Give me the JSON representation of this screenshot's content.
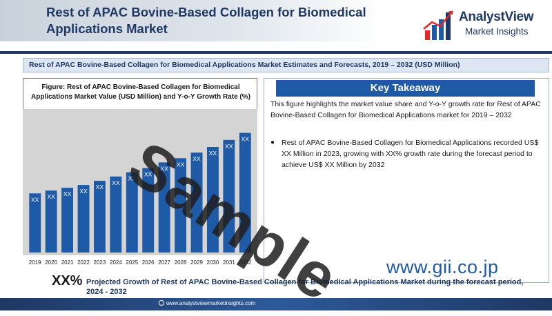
{
  "header": {
    "title": "Rest of APAC Bovine-Based Collagen for Biomedical Applications Market",
    "logo_name": "AnalystView",
    "logo_subtitle": "Market Insights"
  },
  "banner": {
    "text": "Rest of APAC Bovine-Based Collagen for Biomedical Applications Market Estimates and Forecasts, 2019 – 2032 (USD Million)"
  },
  "figure": {
    "title": "Figure: Rest of APAC Bovine-Based Collagen for Biomedical Applications Market Value (USD Million) and Y-o-Y Growth Rate (%)"
  },
  "chart_data": {
    "type": "bar",
    "categories": [
      "2019",
      "2020",
      "2021",
      "2022",
      "2023",
      "2024",
      "2025",
      "2026",
      "2027",
      "2028",
      "2029",
      "2030",
      "2031",
      "2032"
    ],
    "values": [
      0.42,
      0.44,
      0.46,
      0.48,
      0.51,
      0.54,
      0.57,
      0.6,
      0.64,
      0.67,
      0.71,
      0.75,
      0.8,
      0.85
    ],
    "data_labels": [
      "XX",
      "XX",
      "XX",
      "XX",
      "XX",
      "XX",
      "XX",
      "XX",
      "XX",
      "XX",
      "XX",
      "XX",
      "XX",
      "XX"
    ],
    "title": "",
    "xlabel": "",
    "ylabel": "",
    "ylim": [
      0,
      1
    ],
    "grid": false,
    "colors": {
      "bar": "#1f5aa6",
      "background": "#d4d4d4"
    }
  },
  "key_takeaway": {
    "heading": "Key Takeaway",
    "intro": "This figure highlights the market value share and Y-o-Y growth rate for Rest of APAC Bovine-Based Collagen for Biomedical Applications market for 2019 – 2032",
    "bullet": "Rest of APAC Bovine-Based Collagen for Biomedical Applications recorded US$ XX Million in 2023, growing with XX% growth rate during the forecast period to achieve US$ XX Million by 2032"
  },
  "growth": {
    "value": "XX%",
    "text": "Projected Growth of Rest of APAC Bovine-Based Collagen for Biomedical Applications Market during the forecast period, 2024 - 2032"
  },
  "footer": {
    "url": "www.analystviewmarketinsights.com"
  },
  "watermark": {
    "text": "Sample",
    "site": "www.gii.co.jp"
  },
  "colors": {
    "navy": "#1f3864",
    "accent_blue": "#1f5aa6",
    "logo_red": "#e02b2b"
  }
}
